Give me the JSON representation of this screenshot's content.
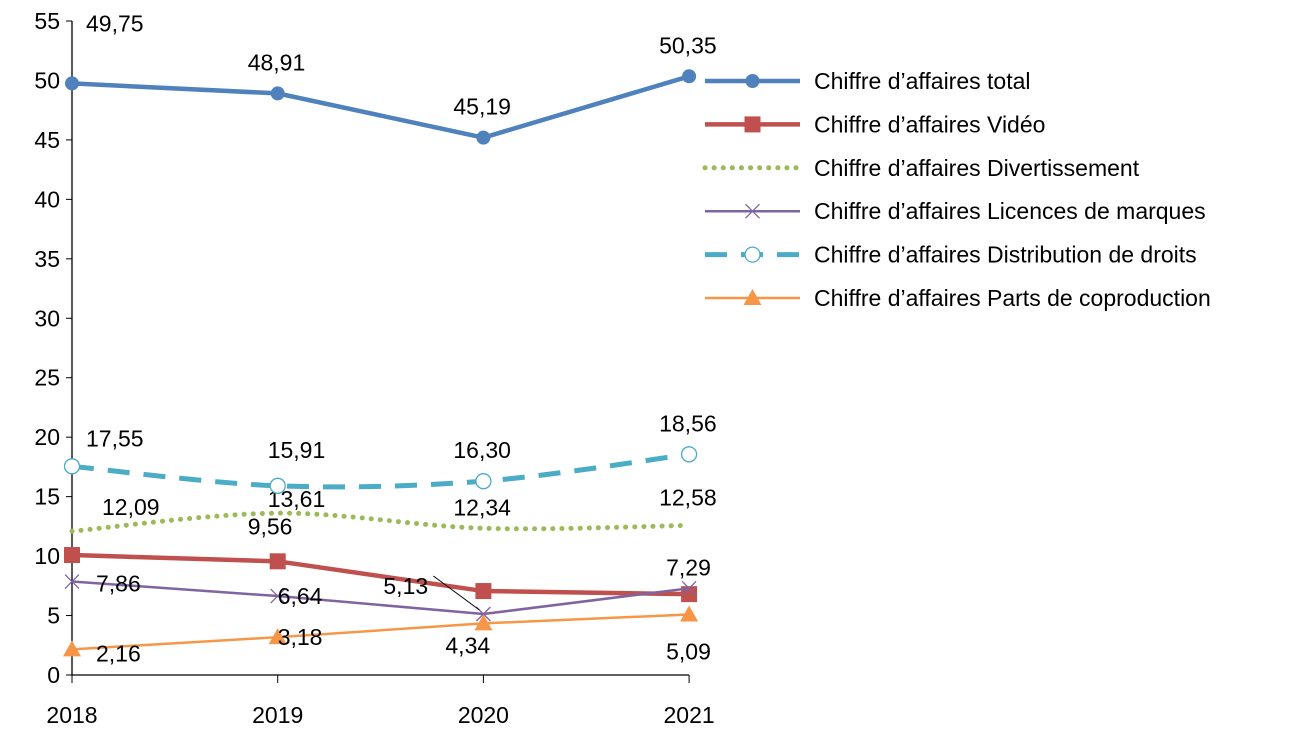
{
  "chart_data": {
    "type": "line",
    "categories": [
      "2018",
      "2019",
      "2020",
      "2021"
    ],
    "ylim": [
      0,
      55
    ],
    "yticks": [
      0,
      5,
      10,
      15,
      20,
      25,
      30,
      35,
      40,
      45,
      50,
      55
    ],
    "grid": false,
    "legend_placement": "right",
    "series": [
      {
        "name": "Chiffre d’affaires total",
        "values": [
          49.75,
          48.91,
          45.19,
          50.35
        ],
        "labels": [
          "49,75",
          "48,91",
          "45,19",
          "50,35"
        ],
        "color": "#4F81BD",
        "marker": "circle",
        "style": "solid-thick"
      },
      {
        "name": "Chiffre d’affaires Vidéo",
        "values": [
          10.09,
          9.56,
          7.06,
          6.8
        ],
        "labels": [
          null,
          "9,56",
          null,
          null
        ],
        "color": "#C0504D",
        "marker": "square",
        "style": "solid-thick"
      },
      {
        "name": "Chiffre d’affaires Divertissement",
        "values": [
          12.09,
          13.61,
          12.34,
          12.58
        ],
        "labels": [
          "12,09",
          "13,61",
          "12,34",
          "12,58"
        ],
        "color": "#9BBB59",
        "marker": "none",
        "style": "dotted"
      },
      {
        "name": "Chiffre d’affaires Licences de marques",
        "values": [
          7.86,
          6.64,
          5.13,
          7.29
        ],
        "labels": [
          "7,86",
          "6,64",
          "5,13",
          "7,29"
        ],
        "color": "#8064A2",
        "marker": "x",
        "style": "solid-thin"
      },
      {
        "name": "Chiffre d’affaires Distribution de droits",
        "values": [
          17.55,
          15.91,
          16.3,
          18.56
        ],
        "labels": [
          "17,55",
          "15,91",
          "16,30",
          "18,56"
        ],
        "color": "#4BACC6",
        "marker": "open-circle",
        "style": "dashed"
      },
      {
        "name": "Chiffre d’affaires Parts de coproduction",
        "values": [
          2.16,
          3.18,
          4.34,
          5.09
        ],
        "labels": [
          "2,16",
          "3,18",
          "4,34",
          "5,09"
        ],
        "color": "#F79646",
        "marker": "triangle",
        "style": "solid-thin"
      }
    ]
  }
}
